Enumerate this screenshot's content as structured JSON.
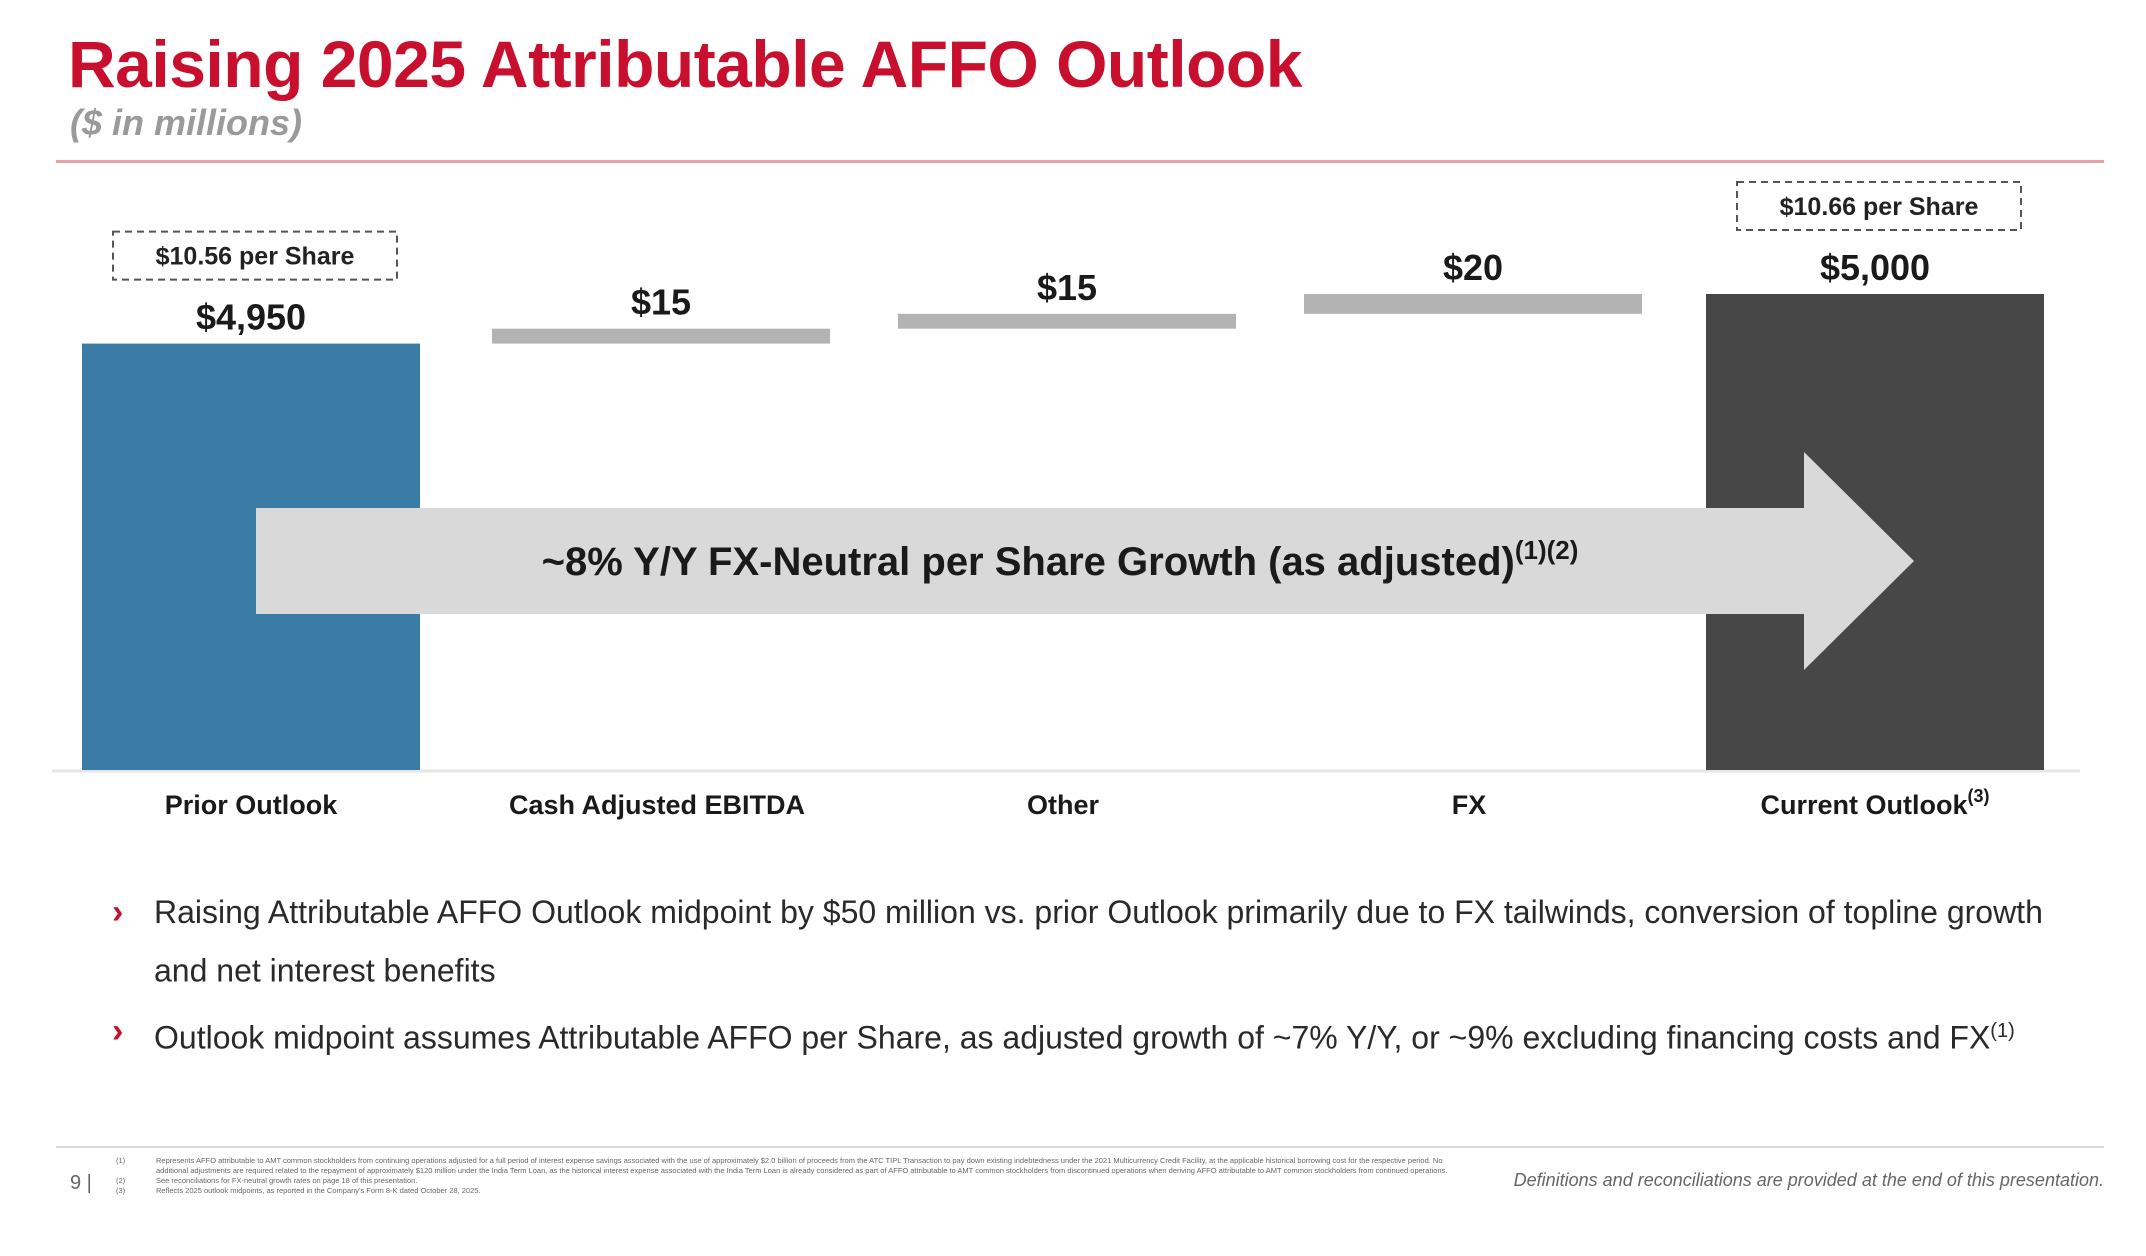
{
  "header": {
    "title": "Raising 2025 Attributable AFFO Outlook",
    "subtitle": "($ in millions)"
  },
  "chart_data": {
    "type": "bar",
    "subtype": "waterfall",
    "categories": [
      "Prior Outlook",
      "Cash Adjusted EBITDA",
      "Other",
      "FX",
      "Current Outlook"
    ],
    "category_superscripts": [
      "",
      "",
      "",
      "",
      "(3)"
    ],
    "values": [
      4950,
      15,
      15,
      20,
      5000
    ],
    "data_labels": [
      "$4,950",
      "$15",
      "$15",
      "$20",
      "$5,000"
    ],
    "bar_kinds": [
      "total",
      "delta",
      "delta",
      "delta",
      "total"
    ],
    "per_share_labels": [
      "$10.56 per Share",
      "",
      "",
      "",
      "$10.66 per Share"
    ],
    "colors": {
      "prior_outlook": "#3a7ca5",
      "current_outlook": "#474747",
      "delta_bars": "#b3b3b3",
      "arrow": "#d9d9d9",
      "axis": "#e6e6e6"
    },
    "arrow_annotation": {
      "text": "~8% Y/Y FX-Neutral per Share Growth (as adjusted)",
      "superscript": "(1)(2)"
    },
    "grid": false
  },
  "bullets": [
    {
      "text": "Raising Attributable AFFO Outlook midpoint by $50 million vs. prior Outlook primarily due to FX tailwinds, conversion of topline growth and net interest benefits",
      "sup": ""
    },
    {
      "text": "Outlook midpoint assumes Attributable AFFO per Share, as adjusted growth of ~7% Y/Y, or ~9% excluding financing costs and FX",
      "sup": "(1)"
    }
  ],
  "footer": {
    "page_number": "9 |",
    "definitions": "Definitions and reconciliations are provided at the end of this presentation.",
    "footnotes": [
      {
        "num": "(1)",
        "text": "Represents AFFO attributable to AMT common stockholders from continuing operations adjusted for a full period of interest expense savings associated with the use of approximately $2.0 billion of proceeds from the ATC TIPL Transaction to pay down existing indebtedness under the 2021 Multicurrency Credit Facility, at the applicable historical borrowing cost for the respective period. No additional adjustments are required related to the repayment of approximately $120 million under the India Term Loan, as the historical interest expense associated with the India Term Loan is already considered as part of AFFO attributable to AMT common stockholders from discontinued operations when deriving AFFO attributable to AMT common stockholders from continued operations."
      },
      {
        "num": "(2)",
        "text": "See reconciliations for FX-neutral growth rates on page 18 of this presentation."
      },
      {
        "num": "(3)",
        "text": "Reflects 2025 outlook midpoints, as reported in the Company's Form 8-K dated October 28, 2025."
      }
    ]
  }
}
